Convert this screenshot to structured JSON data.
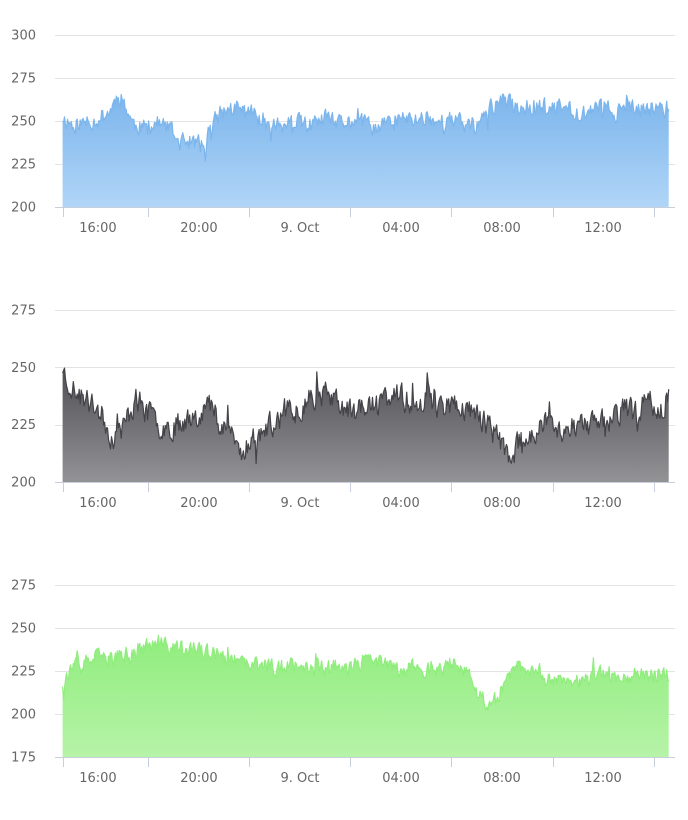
{
  "chart_data": [
    {
      "type": "area",
      "series": [
        {
          "color": "#7cb5ec",
          "fill_top": "#7cb5ec",
          "fill_bottom": "#b0d5f7",
          "keypoints": [
            [
              14.6,
              252
            ],
            [
              15.0,
              248
            ],
            [
              15.5,
              249
            ],
            [
              16.0,
              251
            ],
            [
              16.5,
              256
            ],
            [
              16.8,
              266
            ],
            [
              17.0,
              262
            ],
            [
              17.4,
              248
            ],
            [
              17.8,
              246
            ],
            [
              18.3,
              249
            ],
            [
              18.8,
              246
            ],
            [
              19.2,
              238
            ],
            [
              19.6,
              238
            ],
            [
              20.0,
              237
            ],
            [
              20.2,
              234
            ],
            [
              20.4,
              244
            ],
            [
              20.8,
              254
            ],
            [
              21.2,
              257
            ],
            [
              21.8,
              256
            ],
            [
              22.3,
              254
            ],
            [
              22.8,
              249
            ],
            [
              23.3,
              247
            ],
            [
              24.0,
              249
            ],
            [
              24.5,
              247
            ],
            [
              25.0,
              251
            ],
            [
              25.5,
              248
            ],
            [
              26.0,
              250
            ],
            [
              26.5,
              249
            ],
            [
              27.0,
              246
            ],
            [
              27.5,
              249
            ],
            [
              28.0,
              252
            ],
            [
              28.5,
              250
            ],
            [
              29.0,
              253
            ],
            [
              29.5,
              249
            ],
            [
              30.0,
              251
            ],
            [
              30.5,
              248
            ],
            [
              31.0,
              247
            ],
            [
              31.5,
              257
            ],
            [
              32.0,
              262
            ],
            [
              32.5,
              259
            ],
            [
              33.0,
              258
            ],
            [
              33.5,
              259
            ],
            [
              34.0,
              257
            ],
            [
              34.5,
              258
            ],
            [
              35.0,
              255
            ],
            [
              35.5,
              256
            ],
            [
              36.0,
              259
            ],
            [
              36.5,
              255
            ],
            [
              37.0,
              257
            ],
            [
              37.5,
              256
            ],
            [
              38.0,
              258
            ],
            [
              38.6,
              257
            ]
          ],
          "volatility": 14,
          "seed": 11
        }
      ],
      "x_axis": {
        "ticks": [
          {
            "value": 16,
            "label": "16:00"
          },
          {
            "value": 20,
            "label": "20:00"
          },
          {
            "value": 24,
            "label": "9. Oct"
          },
          {
            "value": 28,
            "label": "04:00"
          },
          {
            "value": 32,
            "label": "08:00"
          },
          {
            "value": 36,
            "label": "12:00"
          }
        ],
        "min": 14.3,
        "max": 38.85
      },
      "y_axis": {
        "ticks": [
          200,
          225,
          250,
          275,
          300
        ],
        "min": 200,
        "max": 300
      },
      "x_range_data": [
        14.6,
        38.6
      ],
      "grid": true,
      "legend": "none"
    },
    {
      "type": "area",
      "series": [
        {
          "color": "#434348",
          "fill_top": "#505055",
          "fill_bottom": "#939396",
          "keypoints": [
            [
              14.6,
              250
            ],
            [
              14.8,
              244
            ],
            [
              15.2,
              238
            ],
            [
              15.6,
              235
            ],
            [
              16.0,
              232
            ],
            [
              16.3,
              226
            ],
            [
              16.6,
              218
            ],
            [
              17.0,
              224
            ],
            [
              17.5,
              236
            ],
            [
              18.0,
              230
            ],
            [
              18.5,
              225
            ],
            [
              19.0,
              224
            ],
            [
              19.5,
              228
            ],
            [
              20.0,
              230
            ],
            [
              20.4,
              234
            ],
            [
              20.8,
              228
            ],
            [
              21.3,
              222
            ],
            [
              21.7,
              211
            ],
            [
              22.0,
              218
            ],
            [
              22.5,
              222
            ],
            [
              23.0,
              226
            ],
            [
              23.5,
              231
            ],
            [
              24.0,
              232
            ],
            [
              24.5,
              238
            ],
            [
              25.0,
              238
            ],
            [
              25.5,
              235
            ],
            [
              26.0,
              230
            ],
            [
              26.5,
              234
            ],
            [
              27.0,
              232
            ],
            [
              27.5,
              238
            ],
            [
              28.0,
              237
            ],
            [
              28.5,
              234
            ],
            [
              29.0,
              237
            ],
            [
              29.5,
              233
            ],
            [
              30.0,
              234
            ],
            [
              30.5,
              232
            ],
            [
              31.0,
              230
            ],
            [
              31.5,
              224
            ],
            [
              32.0,
              217
            ],
            [
              32.3,
              210
            ],
            [
              32.8,
              219
            ],
            [
              33.3,
              222
            ],
            [
              33.8,
              226
            ],
            [
              34.3,
              222
            ],
            [
              34.8,
              226
            ],
            [
              35.3,
              224
            ],
            [
              35.8,
              226
            ],
            [
              36.3,
              228
            ],
            [
              36.8,
              232
            ],
            [
              37.3,
              230
            ],
            [
              37.8,
              236
            ],
            [
              38.2,
              232
            ],
            [
              38.6,
              236
            ]
          ],
          "volatility": 15,
          "seed": 23
        }
      ],
      "x_axis": {
        "ticks": [
          {
            "value": 16,
            "label": "16:00"
          },
          {
            "value": 20,
            "label": "20:00"
          },
          {
            "value": 24,
            "label": "9. Oct"
          },
          {
            "value": 28,
            "label": "04:00"
          },
          {
            "value": 32,
            "label": "08:00"
          },
          {
            "value": 36,
            "label": "12:00"
          }
        ],
        "min": 14.3,
        "max": 38.85
      },
      "y_axis": {
        "ticks": [
          200,
          225,
          250,
          275
        ],
        "min": 200,
        "max": 275
      },
      "x_range_data": [
        14.6,
        38.6
      ],
      "grid": true,
      "legend": "none"
    },
    {
      "type": "area",
      "series": [
        {
          "color": "#90ed7d",
          "fill_top": "#90ed7d",
          "fill_bottom": "#b6f3a8",
          "keypoints": [
            [
              14.6,
              218
            ],
            [
              14.8,
              224
            ],
            [
              15.2,
              228
            ],
            [
              15.6,
              230
            ],
            [
              16.0,
              233
            ],
            [
              16.5,
              232
            ],
            [
              17.0,
              234
            ],
            [
              17.5,
              236
            ],
            [
              18.0,
              240
            ],
            [
              18.5,
              240
            ],
            [
              19.0,
              239
            ],
            [
              19.5,
              238
            ],
            [
              20.0,
              237
            ],
            [
              20.5,
              235
            ],
            [
              21.0,
              232
            ],
            [
              21.5,
              230
            ],
            [
              22.0,
              228
            ],
            [
              22.5,
              229
            ],
            [
              23.0,
              227
            ],
            [
              23.5,
              228
            ],
            [
              24.0,
              230
            ],
            [
              24.5,
              228
            ],
            [
              25.0,
              227
            ],
            [
              25.5,
              229
            ],
            [
              26.0,
              227
            ],
            [
              26.5,
              229
            ],
            [
              27.0,
              231
            ],
            [
              27.5,
              228
            ],
            [
              28.0,
              226
            ],
            [
              28.5,
              228
            ],
            [
              29.0,
              226
            ],
            [
              29.5,
              225
            ],
            [
              30.0,
              230
            ],
            [
              30.4,
              228
            ],
            [
              30.8,
              218
            ],
            [
              31.2,
              210
            ],
            [
              31.6,
              204
            ],
            [
              32.0,
              215
            ],
            [
              32.4,
              224
            ],
            [
              32.8,
              228
            ],
            [
              33.2,
              226
            ],
            [
              33.6,
              224
            ],
            [
              34.0,
              220
            ],
            [
              34.4,
              222
            ],
            [
              34.8,
              220
            ],
            [
              35.2,
              218
            ],
            [
              35.6,
              222
            ],
            [
              36.0,
              223
            ],
            [
              36.5,
              222
            ],
            [
              37.0,
              223
            ],
            [
              37.5,
              224
            ],
            [
              38.0,
              222
            ],
            [
              38.6,
              224
            ]
          ],
          "volatility": 13,
          "seed": 37
        }
      ],
      "x_axis": {
        "ticks": [
          {
            "value": 16,
            "label": "16:00"
          },
          {
            "value": 20,
            "label": "20:00"
          },
          {
            "value": 24,
            "label": "9. Oct"
          },
          {
            "value": 28,
            "label": "04:00"
          },
          {
            "value": 32,
            "label": "08:00"
          },
          {
            "value": 36,
            "label": "12:00"
          }
        ],
        "min": 14.3,
        "max": 38.85
      },
      "y_axis": {
        "ticks": [
          175,
          200,
          225,
          250,
          275
        ],
        "min": 175,
        "max": 275
      },
      "x_range_data": [
        14.6,
        38.6
      ],
      "grid": true,
      "legend": "none"
    }
  ]
}
